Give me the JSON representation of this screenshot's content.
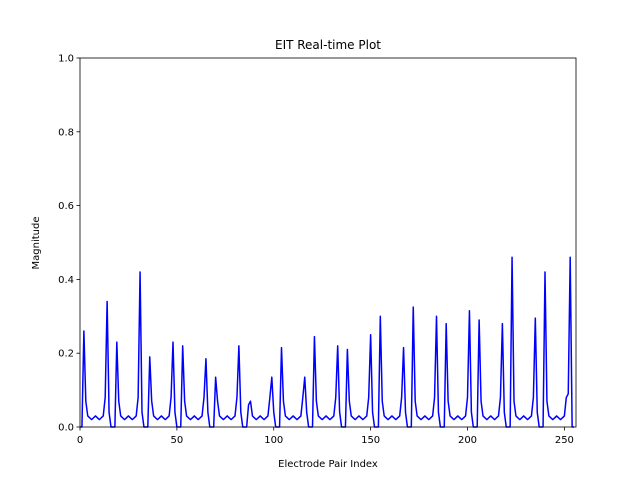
{
  "chart_data": {
    "type": "line",
    "title": "EIT Real-time Plot",
    "x_label": "Electrode Pair Index",
    "y_label": "Magnitude",
    "series": [
      {
        "name": "magnitude",
        "color": "#0000ff",
        "values": [
          0,
          0,
          0.26,
          0.07,
          0.03,
          0.025,
          0.02,
          0.025,
          0.03,
          0.025,
          0.02,
          0.025,
          0.03,
          0.08,
          0.34,
          0.04,
          0,
          0,
          0,
          0.23,
          0.07,
          0.03,
          0.025,
          0.02,
          0.025,
          0.03,
          0.025,
          0.02,
          0.025,
          0.03,
          0.08,
          0.42,
          0.04,
          0,
          0,
          0,
          0.19,
          0.07,
          0.03,
          0.025,
          0.02,
          0.025,
          0.03,
          0.025,
          0.02,
          0.025,
          0.03,
          0.08,
          0.23,
          0.04,
          0,
          0,
          0,
          0.22,
          0.07,
          0.03,
          0.025,
          0.02,
          0.025,
          0.03,
          0.025,
          0.02,
          0.025,
          0.03,
          0.08,
          0.185,
          0.04,
          0,
          0,
          0,
          0.135,
          0.07,
          0.03,
          0.025,
          0.02,
          0.025,
          0.03,
          0.025,
          0.02,
          0.025,
          0.03,
          0.08,
          0.22,
          0.04,
          0,
          0,
          0,
          0.06,
          0.07,
          0.03,
          0.025,
          0.02,
          0.025,
          0.03,
          0.025,
          0.02,
          0.025,
          0.03,
          0.08,
          0.135,
          0.04,
          0,
          0,
          0,
          0.215,
          0.07,
          0.03,
          0.025,
          0.02,
          0.025,
          0.03,
          0.025,
          0.02,
          0.025,
          0.03,
          0.08,
          0.135,
          0.04,
          0,
          0,
          0,
          0.245,
          0.07,
          0.03,
          0.025,
          0.02,
          0.025,
          0.03,
          0.025,
          0.02,
          0.025,
          0.03,
          0.08,
          0.22,
          0.04,
          0,
          0,
          0,
          0.21,
          0.07,
          0.03,
          0.025,
          0.02,
          0.025,
          0.03,
          0.025,
          0.02,
          0.025,
          0.03,
          0.08,
          0.25,
          0.04,
          0,
          0,
          0,
          0.3,
          0.07,
          0.03,
          0.025,
          0.02,
          0.025,
          0.03,
          0.025,
          0.02,
          0.025,
          0.03,
          0.08,
          0.215,
          0.04,
          0,
          0,
          0,
          0.325,
          0.07,
          0.03,
          0.025,
          0.02,
          0.025,
          0.03,
          0.025,
          0.02,
          0.025,
          0.03,
          0.08,
          0.3,
          0.04,
          0,
          0,
          0,
          0.28,
          0.07,
          0.03,
          0.025,
          0.02,
          0.025,
          0.03,
          0.025,
          0.02,
          0.025,
          0.03,
          0.08,
          0.315,
          0.04,
          0,
          0,
          0,
          0.29,
          0.07,
          0.03,
          0.025,
          0.02,
          0.025,
          0.03,
          0.025,
          0.02,
          0.025,
          0.03,
          0.08,
          0.28,
          0.04,
          0,
          0,
          0,
          0.46,
          0.07,
          0.03,
          0.025,
          0.02,
          0.025,
          0.03,
          0.025,
          0.02,
          0.025,
          0.03,
          0.08,
          0.295,
          0.04,
          0,
          0,
          0,
          0.42,
          0.07,
          0.03,
          0.025,
          0.02,
          0.025,
          0.03,
          0.025,
          0.02,
          0.025,
          0.03,
          0.08,
          0.09,
          0.46,
          0,
          0
        ]
      }
    ],
    "xlim": [
      0,
      256
    ],
    "xticks": [
      0,
      50,
      100,
      150,
      200,
      250
    ],
    "ylim": [
      0,
      1
    ],
    "yticks": [
      {
        "value": 0,
        "label": "0.0"
      },
      {
        "value": 0.2,
        "label": "0.2"
      },
      {
        "value": 0.4,
        "label": "0.4"
      },
      {
        "value": 0.6,
        "label": "0.6"
      },
      {
        "value": 0.8,
        "label": "0.8"
      },
      {
        "value": 1,
        "label": "1.0"
      }
    ],
    "grid": false
  }
}
